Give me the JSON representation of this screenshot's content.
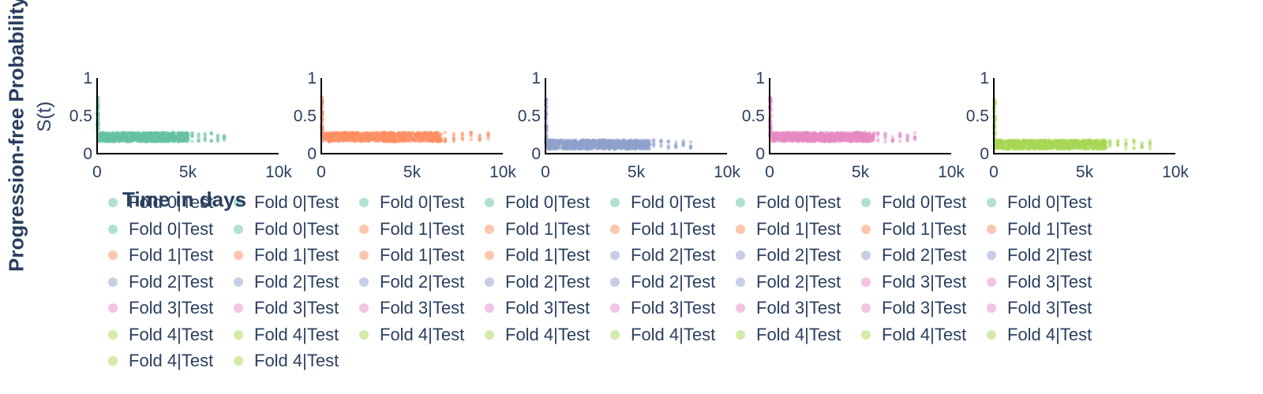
{
  "figure": {
    "ylabel": "Progression-free Probability",
    "ylabel_sub": "S(t)",
    "xlabel": "Time in days"
  },
  "chart_data": [
    {
      "type": "scatter",
      "panel": 1,
      "series": [
        {
          "name": "Fold 0|Test",
          "color": "#66c2a5",
          "x_range_observed": [
            0,
            7000
          ],
          "plateau_y": 0.22,
          "start_y": 0.75,
          "note_values": "many overlapping points"
        }
      ],
      "xlim": [
        0,
        10000
      ],
      "ylim": [
        0,
        1
      ],
      "xticks": [
        "0",
        "5k",
        "10k"
      ],
      "yticks": [
        "0",
        "0.5",
        "1"
      ]
    },
    {
      "type": "scatter",
      "panel": 2,
      "series": [
        {
          "name": "Fold 1|Test",
          "color": "#fc8d62",
          "x_range_observed": [
            0,
            9200
          ],
          "plateau_y": 0.22,
          "start_y": 0.75,
          "note_values": "many overlapping points"
        }
      ],
      "xlim": [
        0,
        10000
      ],
      "ylim": [
        0,
        1
      ],
      "xticks": [
        "0",
        "5k",
        "10k"
      ],
      "yticks": [
        "0",
        "0.5",
        "1"
      ]
    },
    {
      "type": "scatter",
      "panel": 3,
      "series": [
        {
          "name": "Fold 2|Test",
          "color": "#8da0cb",
          "x_range_observed": [
            0,
            8000
          ],
          "plateau_y": 0.12,
          "start_y": 0.72,
          "note_values": "many overlapping points"
        }
      ],
      "xlim": [
        0,
        10000
      ],
      "ylim": [
        0,
        1
      ],
      "xticks": [
        "0",
        "5k",
        "10k"
      ],
      "yticks": [
        "0",
        "0.5",
        "1"
      ]
    },
    {
      "type": "scatter",
      "panel": 4,
      "series": [
        {
          "name": "Fold 3|Test",
          "color": "#e78ac3",
          "x_range_observed": [
            0,
            8000
          ],
          "plateau_y": 0.22,
          "start_y": 0.75,
          "note_values": "many overlapping points"
        }
      ],
      "xlim": [
        0,
        10000
      ],
      "ylim": [
        0,
        1
      ],
      "xticks": [
        "0",
        "5k",
        "10k"
      ],
      "yticks": [
        "0",
        "0.5",
        "1"
      ]
    },
    {
      "type": "scatter",
      "panel": 5,
      "series": [
        {
          "name": "Fold 4|Test",
          "color": "#a6d854",
          "x_range_observed": [
            0,
            8600
          ],
          "plateau_y": 0.12,
          "start_y": 0.72,
          "note_values": "many overlapping points"
        }
      ],
      "xlim": [
        0,
        10000
      ],
      "ylim": [
        0,
        1
      ],
      "xticks": [
        "0",
        "5k",
        "10k"
      ],
      "yticks": [
        "0",
        "0.5",
        "1"
      ]
    }
  ],
  "legend": {
    "items": [
      {
        "label": "Fold 0|Test",
        "color": "#66c2a5"
      },
      {
        "label": "Fold 0|Test",
        "color": "#66c2a5"
      },
      {
        "label": "Fold 0|Test",
        "color": "#66c2a5"
      },
      {
        "label": "Fold 0|Test",
        "color": "#66c2a5"
      },
      {
        "label": "Fold 0|Test",
        "color": "#66c2a5"
      },
      {
        "label": "Fold 0|Test",
        "color": "#66c2a5"
      },
      {
        "label": "Fold 0|Test",
        "color": "#66c2a5"
      },
      {
        "label": "Fold 0|Test",
        "color": "#66c2a5"
      },
      {
        "label": "Fold 0|Test",
        "color": "#66c2a5"
      },
      {
        "label": "Fold 0|Test",
        "color": "#66c2a5"
      },
      {
        "label": "Fold 1|Test",
        "color": "#fc8d62"
      },
      {
        "label": "Fold 1|Test",
        "color": "#fc8d62"
      },
      {
        "label": "Fold 1|Test",
        "color": "#fc8d62"
      },
      {
        "label": "Fold 1|Test",
        "color": "#fc8d62"
      },
      {
        "label": "Fold 1|Test",
        "color": "#fc8d62"
      },
      {
        "label": "Fold 1|Test",
        "color": "#fc8d62"
      },
      {
        "label": "Fold 1|Test",
        "color": "#fc8d62"
      },
      {
        "label": "Fold 1|Test",
        "color": "#fc8d62"
      },
      {
        "label": "Fold 1|Test",
        "color": "#fc8d62"
      },
      {
        "label": "Fold 1|Test",
        "color": "#fc8d62"
      },
      {
        "label": "Fold 2|Test",
        "color": "#8da0cb"
      },
      {
        "label": "Fold 2|Test",
        "color": "#8da0cb"
      },
      {
        "label": "Fold 2|Test",
        "color": "#8da0cb"
      },
      {
        "label": "Fold 2|Test",
        "color": "#8da0cb"
      },
      {
        "label": "Fold 2|Test",
        "color": "#8da0cb"
      },
      {
        "label": "Fold 2|Test",
        "color": "#8da0cb"
      },
      {
        "label": "Fold 2|Test",
        "color": "#8da0cb"
      },
      {
        "label": "Fold 2|Test",
        "color": "#8da0cb"
      },
      {
        "label": "Fold 2|Test",
        "color": "#8da0cb"
      },
      {
        "label": "Fold 2|Test",
        "color": "#8da0cb"
      },
      {
        "label": "Fold 3|Test",
        "color": "#e78ac3"
      },
      {
        "label": "Fold 3|Test",
        "color": "#e78ac3"
      },
      {
        "label": "Fold 3|Test",
        "color": "#e78ac3"
      },
      {
        "label": "Fold 3|Test",
        "color": "#e78ac3"
      },
      {
        "label": "Fold 3|Test",
        "color": "#e78ac3"
      },
      {
        "label": "Fold 3|Test",
        "color": "#e78ac3"
      },
      {
        "label": "Fold 3|Test",
        "color": "#e78ac3"
      },
      {
        "label": "Fold 3|Test",
        "color": "#e78ac3"
      },
      {
        "label": "Fold 3|Test",
        "color": "#e78ac3"
      },
      {
        "label": "Fold 3|Test",
        "color": "#e78ac3"
      },
      {
        "label": "Fold 4|Test",
        "color": "#a6d854"
      },
      {
        "label": "Fold 4|Test",
        "color": "#a6d854"
      },
      {
        "label": "Fold 4|Test",
        "color": "#a6d854"
      },
      {
        "label": "Fold 4|Test",
        "color": "#a6d854"
      },
      {
        "label": "Fold 4|Test",
        "color": "#a6d854"
      },
      {
        "label": "Fold 4|Test",
        "color": "#a6d854"
      },
      {
        "label": "Fold 4|Test",
        "color": "#a6d854"
      },
      {
        "label": "Fold 4|Test",
        "color": "#a6d854"
      },
      {
        "label": "Fold 4|Test",
        "color": "#a6d854"
      },
      {
        "label": "Fold 4|Test",
        "color": "#a6d854"
      }
    ]
  }
}
